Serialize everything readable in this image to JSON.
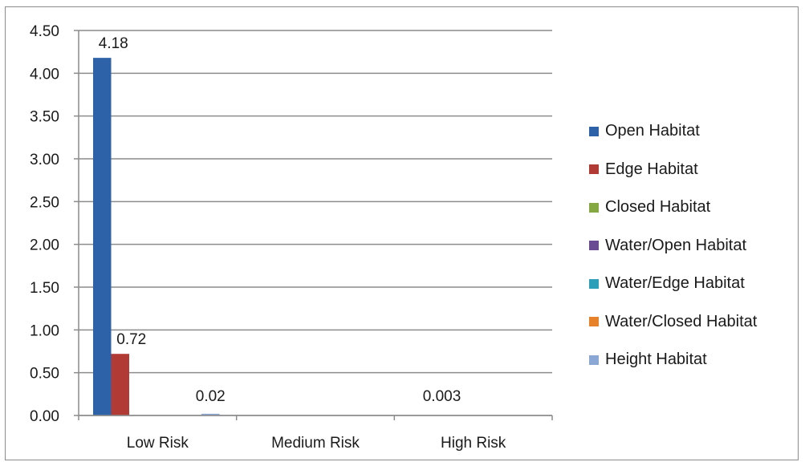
{
  "chart_data": {
    "type": "bar",
    "categories": [
      "Low Risk",
      "Medium Risk",
      "High Risk"
    ],
    "ylim": [
      0,
      4.5
    ],
    "yticks": [
      "0.00",
      "0.50",
      "1.00",
      "1.50",
      "2.00",
      "2.50",
      "3.00",
      "3.50",
      "4.00",
      "4.50"
    ],
    "grid": true,
    "legend_position": "right",
    "series": [
      {
        "name": "Open Habitat",
        "color": "#2e62a8",
        "values": [
          4.18,
          0,
          0
        ],
        "labels": [
          "4.18",
          "",
          ""
        ]
      },
      {
        "name": "Edge Habitat",
        "color": "#b23a35",
        "values": [
          0.72,
          0,
          0
        ],
        "labels": [
          "0.72",
          "",
          ""
        ]
      },
      {
        "name": "Closed Habitat",
        "color": "#86a843",
        "values": [
          0,
          0,
          0
        ],
        "labels": [
          "",
          "",
          ""
        ]
      },
      {
        "name": "Water/Open Habitat",
        "color": "#6a4a93",
        "values": [
          0,
          0,
          0
        ],
        "labels": [
          "",
          "",
          ""
        ]
      },
      {
        "name": "Water/Edge Habitat",
        "color": "#2e9fb8",
        "values": [
          0,
          0,
          0
        ],
        "labels": [
          "",
          "",
          ""
        ]
      },
      {
        "name": "Water/Closed Habitat",
        "color": "#e8822a",
        "values": [
          0,
          0,
          0
        ],
        "labels": [
          "",
          "",
          ""
        ]
      },
      {
        "name": "Height Habitat",
        "color": "#8aa7d6",
        "values": [
          0.02,
          0,
          0.003
        ],
        "labels": [
          "0.02",
          "",
          "0.003"
        ]
      }
    ]
  }
}
